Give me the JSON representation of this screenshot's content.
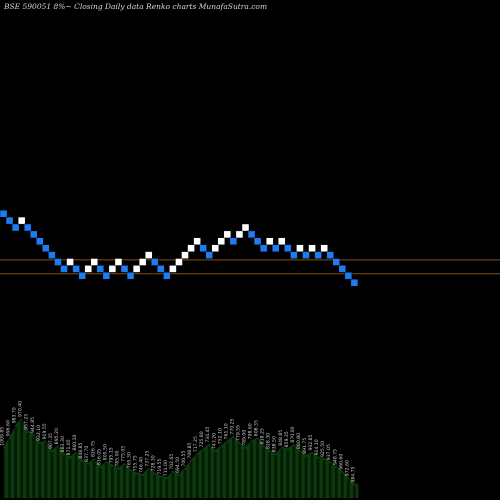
{
  "chart_data": {
    "type": "renko",
    "title": "BSE 590051 8%~  Closing Daily data  Renko  charts MunafaSutra.com",
    "colors": {
      "up": "#ffffff",
      "down": "#1e7cf0",
      "reference_line": "#8a4a0e",
      "volume_fill": "#0d3a0d",
      "volume_bar": "#000000",
      "background": "#000000"
    },
    "grid": false,
    "reference_lines": [
      {
        "name": "",
        "level_index": 0.3
      },
      {
        "name": "",
        "level_index": -1.7
      }
    ],
    "bricks": [
      {
        "dir": "down",
        "level": 7
      },
      {
        "dir": "down",
        "level": 6
      },
      {
        "dir": "down",
        "level": 5
      },
      {
        "dir": "up",
        "level": 6
      },
      {
        "dir": "down",
        "level": 5
      },
      {
        "dir": "down",
        "level": 4
      },
      {
        "dir": "down",
        "level": 3
      },
      {
        "dir": "down",
        "level": 2
      },
      {
        "dir": "down",
        "level": 1
      },
      {
        "dir": "down",
        "level": 0
      },
      {
        "dir": "down",
        "level": -1
      },
      {
        "dir": "up",
        "level": 0
      },
      {
        "dir": "down",
        "level": -1
      },
      {
        "dir": "down",
        "level": -2
      },
      {
        "dir": "up",
        "level": -1
      },
      {
        "dir": "up",
        "level": 0
      },
      {
        "dir": "down",
        "level": -1
      },
      {
        "dir": "down",
        "level": -2
      },
      {
        "dir": "up",
        "level": -1
      },
      {
        "dir": "up",
        "level": 0
      },
      {
        "dir": "down",
        "level": -1
      },
      {
        "dir": "down",
        "level": -2
      },
      {
        "dir": "up",
        "level": -1
      },
      {
        "dir": "up",
        "level": 0
      },
      {
        "dir": "up",
        "level": 1
      },
      {
        "dir": "down",
        "level": 0
      },
      {
        "dir": "down",
        "level": -1
      },
      {
        "dir": "down",
        "level": -2
      },
      {
        "dir": "up",
        "level": -1
      },
      {
        "dir": "up",
        "level": 0
      },
      {
        "dir": "up",
        "level": 1
      },
      {
        "dir": "up",
        "level": 2
      },
      {
        "dir": "up",
        "level": 3
      },
      {
        "dir": "down",
        "level": 2
      },
      {
        "dir": "down",
        "level": 1
      },
      {
        "dir": "up",
        "level": 2
      },
      {
        "dir": "up",
        "level": 3
      },
      {
        "dir": "up",
        "level": 4
      },
      {
        "dir": "down",
        "level": 3
      },
      {
        "dir": "up",
        "level": 4
      },
      {
        "dir": "up",
        "level": 5
      },
      {
        "dir": "down",
        "level": 4
      },
      {
        "dir": "down",
        "level": 3
      },
      {
        "dir": "down",
        "level": 2
      },
      {
        "dir": "up",
        "level": 3
      },
      {
        "dir": "down",
        "level": 2
      },
      {
        "dir": "up",
        "level": 3
      },
      {
        "dir": "down",
        "level": 2
      },
      {
        "dir": "down",
        "level": 1
      },
      {
        "dir": "up",
        "level": 2
      },
      {
        "dir": "down",
        "level": 1
      },
      {
        "dir": "up",
        "level": 2
      },
      {
        "dir": "down",
        "level": 1
      },
      {
        "dir": "up",
        "level": 2
      },
      {
        "dir": "down",
        "level": 1
      },
      {
        "dir": "down",
        "level": 0
      },
      {
        "dir": "down",
        "level": -1
      },
      {
        "dir": "down",
        "level": -2
      },
      {
        "dir": "down",
        "level": -3
      }
    ],
    "volume": {
      "values": [
        3.2,
        3.8,
        4.6,
        5.0,
        4.2,
        4.0,
        3.5,
        3.6,
        3.0,
        3.3,
        2.8,
        2.6,
        2.9,
        2.4,
        2.2,
        2.5,
        2.0,
        2.3,
        2.1,
        1.9,
        2.2,
        1.8,
        1.6,
        1.5,
        1.9,
        1.6,
        1.4,
        1.3,
        1.7,
        1.5,
        1.9,
        2.4,
        2.8,
        3.1,
        3.4,
        3.0,
        3.3,
        3.6,
        3.9,
        3.5,
        3.2,
        3.6,
        3.8,
        3.3,
        3.0,
        2.8,
        3.2,
        3.1,
        3.4,
        3.0,
        2.7,
        2.9,
        2.6,
        2.5,
        2.3,
        2.0,
        1.7,
        1.3,
        0.9
      ],
      "labels": [
        "1009.85",
        "996.60",
        "983.70",
        "970.40",
        "957.25",
        "944.85",
        "932.10",
        "919.55",
        "907.35",
        "895.20",
        "883.30",
        "871.65",
        "860.10",
        "848.85",
        "837.70",
        "826.75",
        "816.05",
        "805.50",
        "795.15",
        "785.00",
        "775.05",
        "765.30",
        "755.75",
        "746.40",
        "737.25",
        "728.30",
        "719.55",
        "711.00",
        "702.65",
        "694.50",
        "700.55",
        "708.85",
        "717.25",
        "725.80",
        "734.45",
        "743.20",
        "752.10",
        "761.10",
        "770.25",
        "779.55",
        "789.00",
        "798.60",
        "808.35",
        "818.25",
        "828.30",
        "838.50",
        "848.85",
        "859.35",
        "870.00",
        "880.80",
        "891.75",
        "902.85",
        "914.10",
        "925.50",
        "937.05",
        "948.75",
        "960.60",
        "972.60",
        "984.75"
      ]
    }
  }
}
